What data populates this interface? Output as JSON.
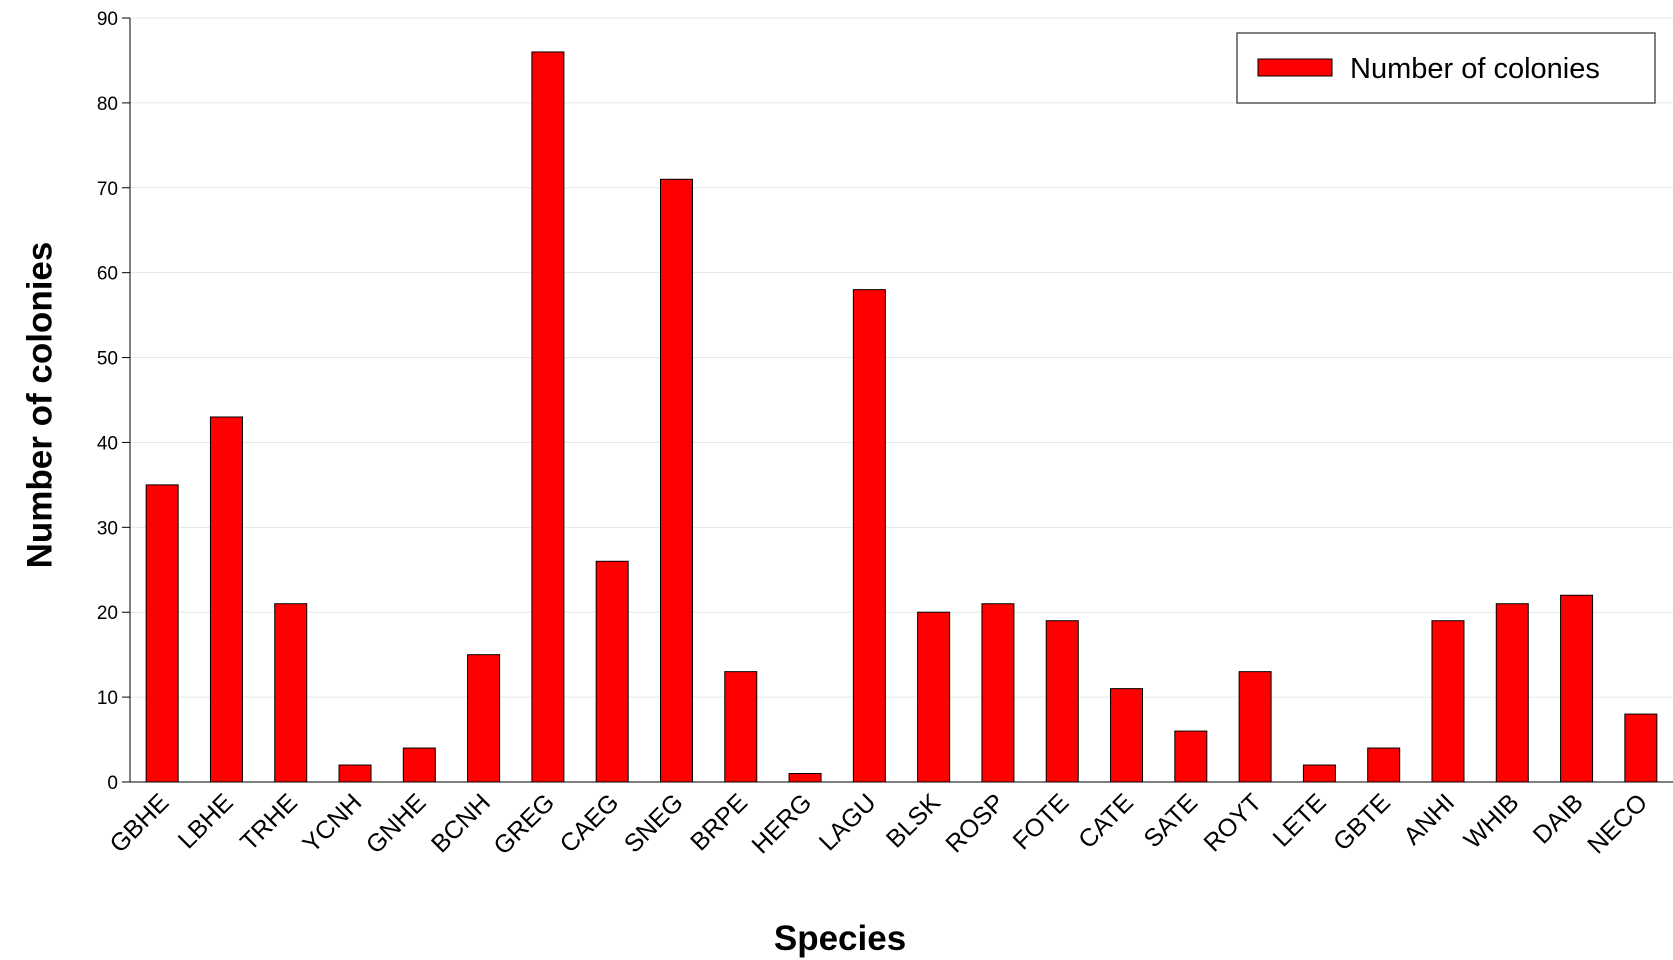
{
  "chart_data": {
    "type": "bar",
    "xlabel": "Species",
    "ylabel": "Number of colonies",
    "ylim": [
      0,
      90
    ],
    "yticks": [
      0,
      10,
      20,
      30,
      40,
      50,
      60,
      70,
      80,
      90
    ],
    "grid": true,
    "legend_position": "top-right",
    "categories": [
      "GBHE",
      "LBHE",
      "TRHE",
      "YCNH",
      "GNHE",
      "BCNH",
      "GREG",
      "CAEG",
      "SNEG",
      "BRPE",
      "HERG",
      "LAGU",
      "BLSK",
      "ROSP",
      "FOTE",
      "CATE",
      "SATE",
      "ROYT",
      "LETE",
      "GBTE",
      "ANHI",
      "WHIB",
      "DAIB",
      "NECO"
    ],
    "series": [
      {
        "name": "Number of colonies",
        "color": "#ff0000",
        "values": [
          35,
          43,
          21,
          2,
          4,
          15,
          86,
          26,
          71,
          13,
          1,
          58,
          20,
          21,
          19,
          11,
          6,
          13,
          2,
          4,
          19,
          21,
          22,
          8
        ]
      }
    ]
  }
}
